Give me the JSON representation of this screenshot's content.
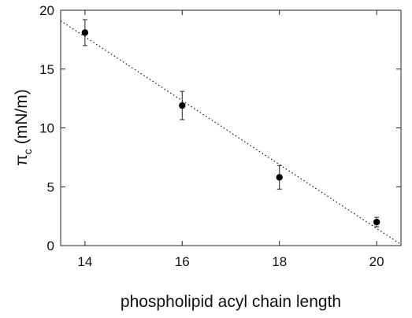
{
  "chart_data": {
    "type": "scatter",
    "xlabel": "phospholipid acyl chain length",
    "ylabel": "π",
    "ylabel_subscript": "c",
    "ylabel_unit": "(mN/m)",
    "xlim": [
      13.5,
      20.5
    ],
    "ylim": [
      0,
      20
    ],
    "x_ticks": [
      "14",
      "16",
      "18",
      "20"
    ],
    "y_ticks": [
      "0",
      "5",
      "10",
      "15",
      "20"
    ],
    "grid": false,
    "points": [
      {
        "x": 14,
        "y": 18.1,
        "err": 1.1
      },
      {
        "x": 16,
        "y": 11.9,
        "err": 1.2
      },
      {
        "x": 18,
        "y": 5.8,
        "err": 1.0
      },
      {
        "x": 20,
        "y": 2.0,
        "err": 0.4
      }
    ],
    "fit_line": {
      "style": "dotted",
      "x": [
        13.5,
        20.5
      ],
      "y": [
        19.1,
        0.1
      ]
    }
  }
}
